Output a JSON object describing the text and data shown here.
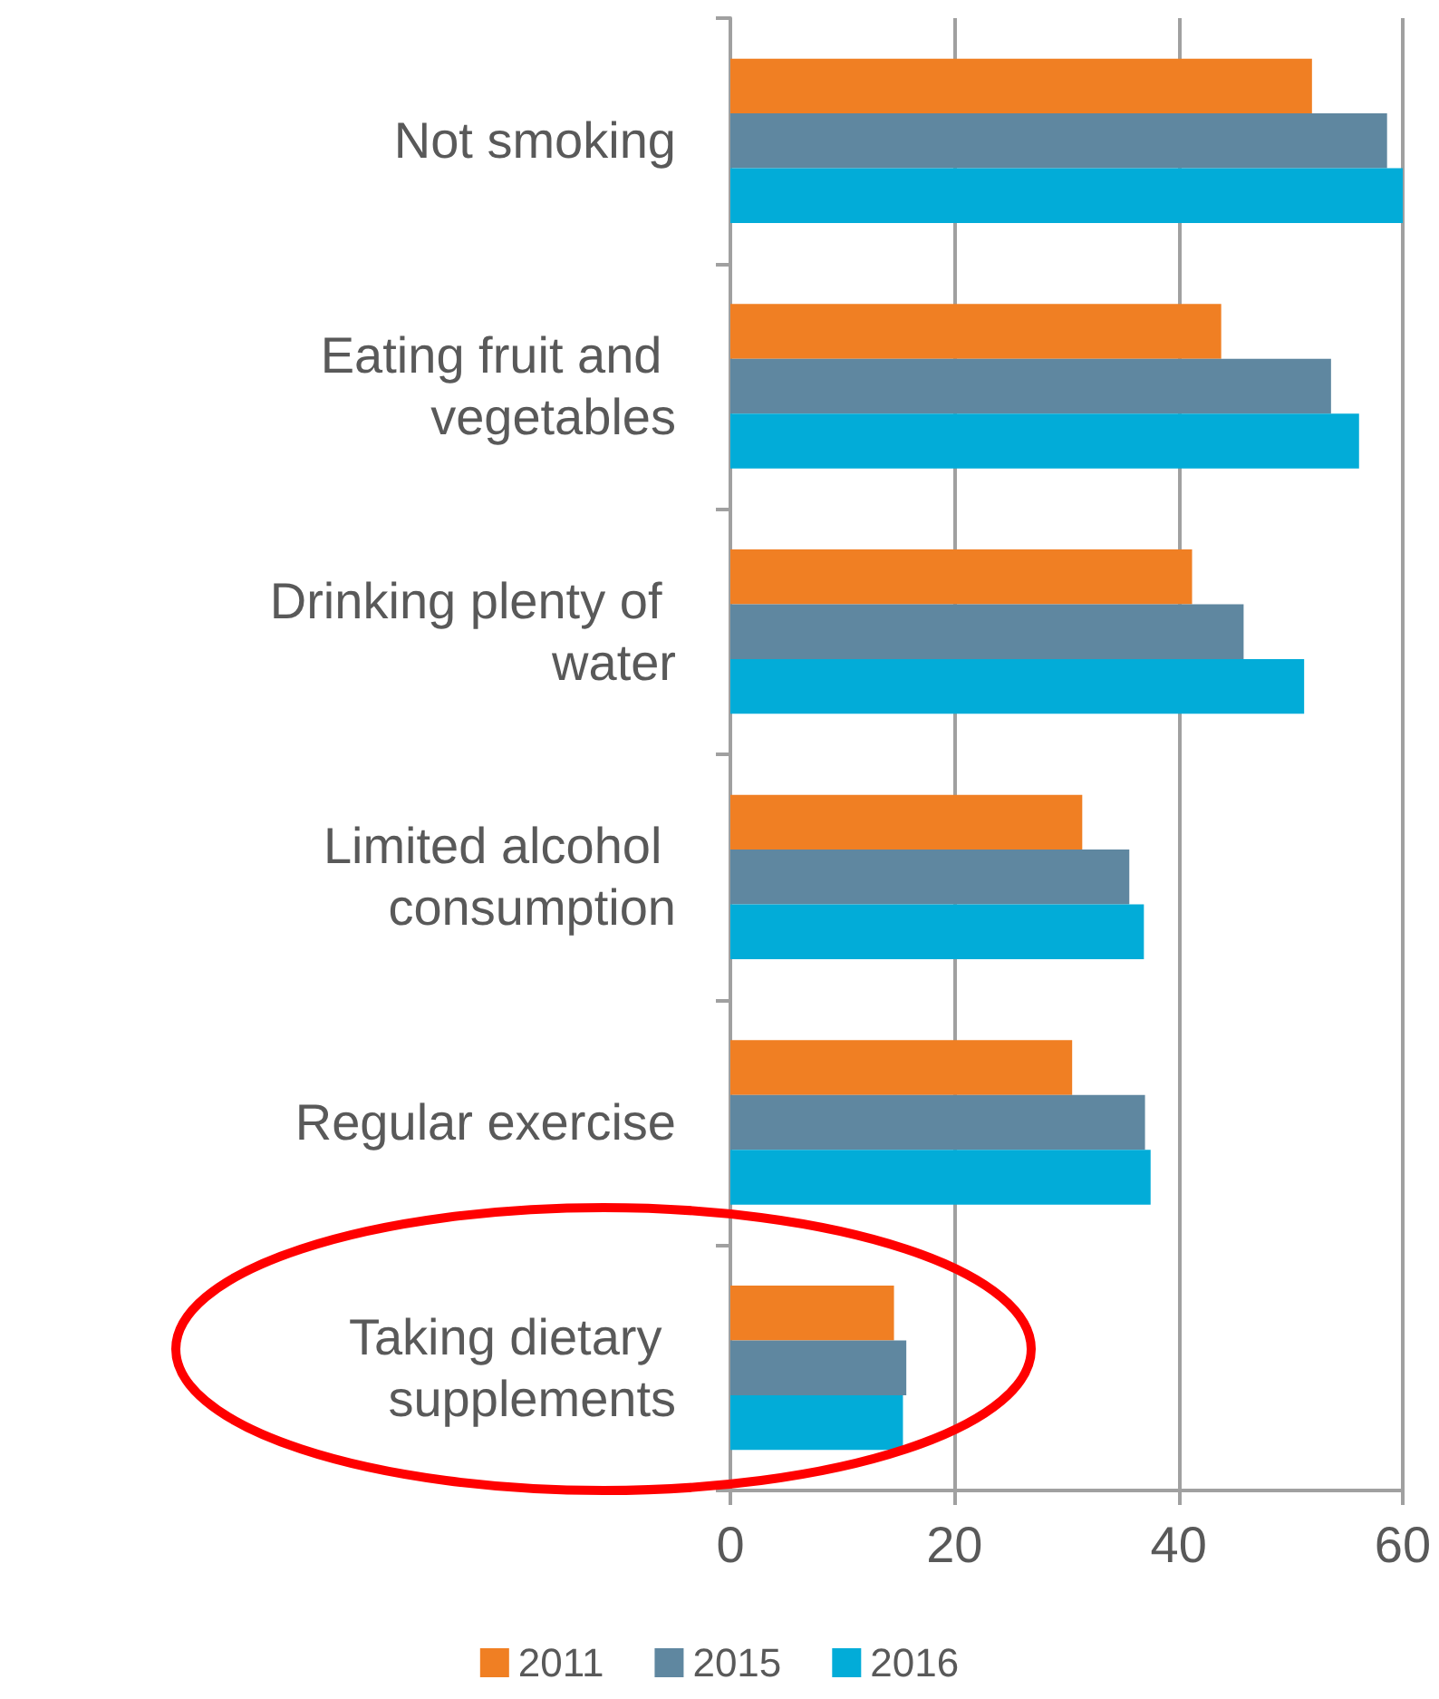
{
  "chart_data": {
    "type": "bar",
    "orientation": "horizontal",
    "categories": [
      "Not smoking",
      "Eating fruit and vegetables",
      "Drinking plenty of water",
      "Limited alcohol consumption",
      "Regular exercise",
      "Taking dietary supplements"
    ],
    "series": [
      {
        "name": "2011",
        "color": "#f07f23",
        "values": [
          51.9,
          43.8,
          41.2,
          31.4,
          30.5,
          14.6
        ]
      },
      {
        "name": "2015",
        "color": "#5f87a0",
        "values": [
          58.6,
          53.6,
          45.8,
          35.6,
          37.0,
          15.7
        ]
      },
      {
        "name": "2016",
        "color": "#02acd8",
        "values": [
          60,
          56.1,
          51.2,
          36.9,
          37.5,
          15.4
        ]
      }
    ],
    "xlim": [
      0,
      60
    ],
    "xticks": [
      0,
      20,
      40,
      60
    ],
    "grid": "x",
    "legend": "bottom"
  }
}
